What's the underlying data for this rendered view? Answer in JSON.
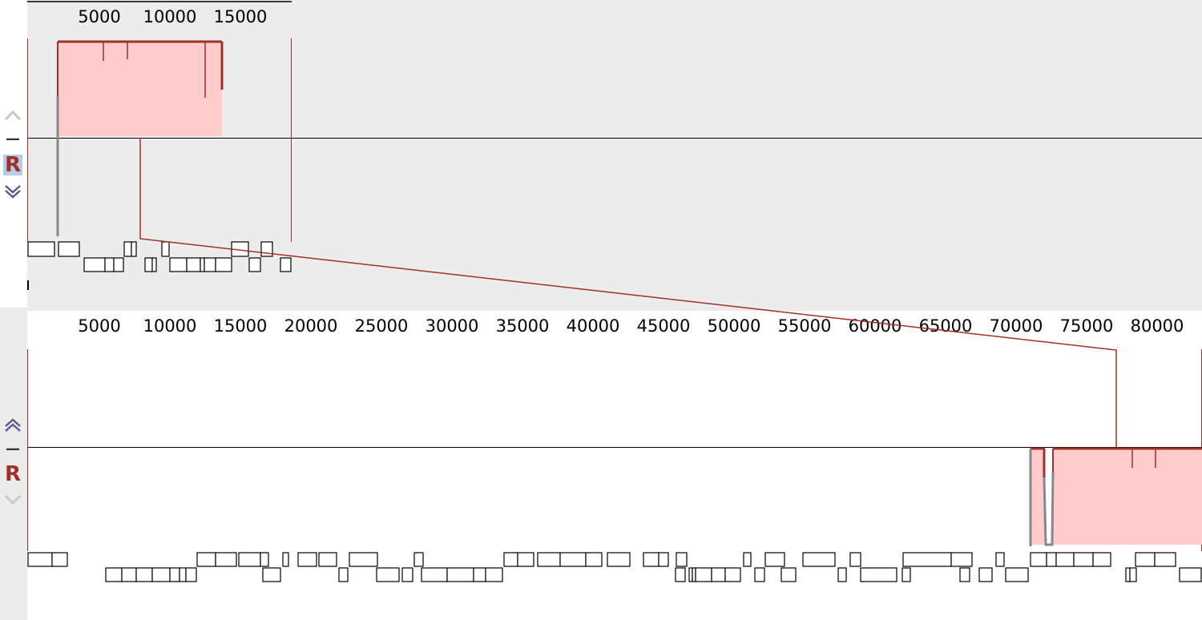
{
  "panels": [
    {
      "id": "top",
      "axis_ticks": [
        "5000",
        "10000",
        "15000"
      ],
      "controls": {
        "up": "chevron-up",
        "minus": "—",
        "r": "R",
        "down": "chevron-down"
      },
      "background": "#ececec"
    },
    {
      "id": "bottom",
      "axis_ticks": [
        "5000",
        "10000",
        "15000",
        "20000",
        "25000",
        "30000",
        "35000",
        "40000",
        "45000",
        "50000",
        "55000",
        "60000",
        "65000",
        "70000",
        "75000",
        "80000"
      ],
      "controls": {
        "up": "chevron-up",
        "minus": "—",
        "r": "R",
        "down": "chevron-down"
      },
      "background": "#ffffff"
    }
  ],
  "colors": {
    "match_fill": "#ffcccc",
    "match_line": "#a0302a",
    "gap_line": "#888888",
    "r_label": "#a0302a",
    "selected_bg": "#b7cbe6"
  }
}
